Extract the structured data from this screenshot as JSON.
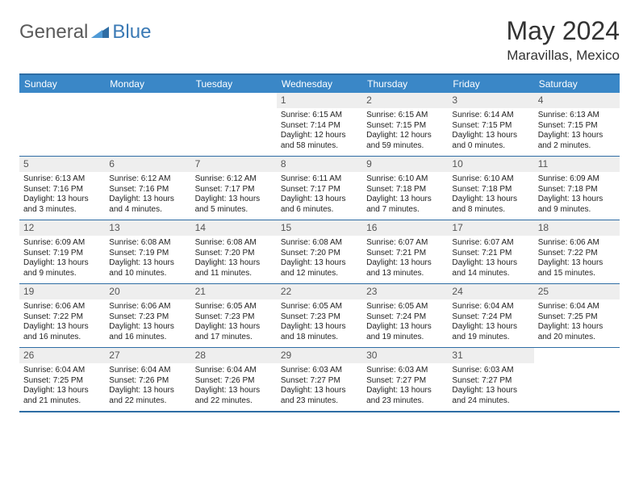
{
  "brand": {
    "part1": "General",
    "part2": "Blue"
  },
  "title": "May 2024",
  "location": "Maravillas, Mexico",
  "colors": {
    "header_bg": "#3a87c7",
    "border": "#2e6da4",
    "daynum_bg": "#eeeeee",
    "text": "#333333"
  },
  "day_names": [
    "Sunday",
    "Monday",
    "Tuesday",
    "Wednesday",
    "Thursday",
    "Friday",
    "Saturday"
  ],
  "weeks": [
    [
      {
        "n": "",
        "sr": "",
        "ss": "",
        "dl": ""
      },
      {
        "n": "",
        "sr": "",
        "ss": "",
        "dl": ""
      },
      {
        "n": "",
        "sr": "",
        "ss": "",
        "dl": ""
      },
      {
        "n": "1",
        "sr": "Sunrise: 6:15 AM",
        "ss": "Sunset: 7:14 PM",
        "dl": "Daylight: 12 hours and 58 minutes."
      },
      {
        "n": "2",
        "sr": "Sunrise: 6:15 AM",
        "ss": "Sunset: 7:15 PM",
        "dl": "Daylight: 12 hours and 59 minutes."
      },
      {
        "n": "3",
        "sr": "Sunrise: 6:14 AM",
        "ss": "Sunset: 7:15 PM",
        "dl": "Daylight: 13 hours and 0 minutes."
      },
      {
        "n": "4",
        "sr": "Sunrise: 6:13 AM",
        "ss": "Sunset: 7:15 PM",
        "dl": "Daylight: 13 hours and 2 minutes."
      }
    ],
    [
      {
        "n": "5",
        "sr": "Sunrise: 6:13 AM",
        "ss": "Sunset: 7:16 PM",
        "dl": "Daylight: 13 hours and 3 minutes."
      },
      {
        "n": "6",
        "sr": "Sunrise: 6:12 AM",
        "ss": "Sunset: 7:16 PM",
        "dl": "Daylight: 13 hours and 4 minutes."
      },
      {
        "n": "7",
        "sr": "Sunrise: 6:12 AM",
        "ss": "Sunset: 7:17 PM",
        "dl": "Daylight: 13 hours and 5 minutes."
      },
      {
        "n": "8",
        "sr": "Sunrise: 6:11 AM",
        "ss": "Sunset: 7:17 PM",
        "dl": "Daylight: 13 hours and 6 minutes."
      },
      {
        "n": "9",
        "sr": "Sunrise: 6:10 AM",
        "ss": "Sunset: 7:18 PM",
        "dl": "Daylight: 13 hours and 7 minutes."
      },
      {
        "n": "10",
        "sr": "Sunrise: 6:10 AM",
        "ss": "Sunset: 7:18 PM",
        "dl": "Daylight: 13 hours and 8 minutes."
      },
      {
        "n": "11",
        "sr": "Sunrise: 6:09 AM",
        "ss": "Sunset: 7:18 PM",
        "dl": "Daylight: 13 hours and 9 minutes."
      }
    ],
    [
      {
        "n": "12",
        "sr": "Sunrise: 6:09 AM",
        "ss": "Sunset: 7:19 PM",
        "dl": "Daylight: 13 hours and 9 minutes."
      },
      {
        "n": "13",
        "sr": "Sunrise: 6:08 AM",
        "ss": "Sunset: 7:19 PM",
        "dl": "Daylight: 13 hours and 10 minutes."
      },
      {
        "n": "14",
        "sr": "Sunrise: 6:08 AM",
        "ss": "Sunset: 7:20 PM",
        "dl": "Daylight: 13 hours and 11 minutes."
      },
      {
        "n": "15",
        "sr": "Sunrise: 6:08 AM",
        "ss": "Sunset: 7:20 PM",
        "dl": "Daylight: 13 hours and 12 minutes."
      },
      {
        "n": "16",
        "sr": "Sunrise: 6:07 AM",
        "ss": "Sunset: 7:21 PM",
        "dl": "Daylight: 13 hours and 13 minutes."
      },
      {
        "n": "17",
        "sr": "Sunrise: 6:07 AM",
        "ss": "Sunset: 7:21 PM",
        "dl": "Daylight: 13 hours and 14 minutes."
      },
      {
        "n": "18",
        "sr": "Sunrise: 6:06 AM",
        "ss": "Sunset: 7:22 PM",
        "dl": "Daylight: 13 hours and 15 minutes."
      }
    ],
    [
      {
        "n": "19",
        "sr": "Sunrise: 6:06 AM",
        "ss": "Sunset: 7:22 PM",
        "dl": "Daylight: 13 hours and 16 minutes."
      },
      {
        "n": "20",
        "sr": "Sunrise: 6:06 AM",
        "ss": "Sunset: 7:23 PM",
        "dl": "Daylight: 13 hours and 16 minutes."
      },
      {
        "n": "21",
        "sr": "Sunrise: 6:05 AM",
        "ss": "Sunset: 7:23 PM",
        "dl": "Daylight: 13 hours and 17 minutes."
      },
      {
        "n": "22",
        "sr": "Sunrise: 6:05 AM",
        "ss": "Sunset: 7:23 PM",
        "dl": "Daylight: 13 hours and 18 minutes."
      },
      {
        "n": "23",
        "sr": "Sunrise: 6:05 AM",
        "ss": "Sunset: 7:24 PM",
        "dl": "Daylight: 13 hours and 19 minutes."
      },
      {
        "n": "24",
        "sr": "Sunrise: 6:04 AM",
        "ss": "Sunset: 7:24 PM",
        "dl": "Daylight: 13 hours and 19 minutes."
      },
      {
        "n": "25",
        "sr": "Sunrise: 6:04 AM",
        "ss": "Sunset: 7:25 PM",
        "dl": "Daylight: 13 hours and 20 minutes."
      }
    ],
    [
      {
        "n": "26",
        "sr": "Sunrise: 6:04 AM",
        "ss": "Sunset: 7:25 PM",
        "dl": "Daylight: 13 hours and 21 minutes."
      },
      {
        "n": "27",
        "sr": "Sunrise: 6:04 AM",
        "ss": "Sunset: 7:26 PM",
        "dl": "Daylight: 13 hours and 22 minutes."
      },
      {
        "n": "28",
        "sr": "Sunrise: 6:04 AM",
        "ss": "Sunset: 7:26 PM",
        "dl": "Daylight: 13 hours and 22 minutes."
      },
      {
        "n": "29",
        "sr": "Sunrise: 6:03 AM",
        "ss": "Sunset: 7:27 PM",
        "dl": "Daylight: 13 hours and 23 minutes."
      },
      {
        "n": "30",
        "sr": "Sunrise: 6:03 AM",
        "ss": "Sunset: 7:27 PM",
        "dl": "Daylight: 13 hours and 23 minutes."
      },
      {
        "n": "31",
        "sr": "Sunrise: 6:03 AM",
        "ss": "Sunset: 7:27 PM",
        "dl": "Daylight: 13 hours and 24 minutes."
      },
      {
        "n": "",
        "sr": "",
        "ss": "",
        "dl": ""
      }
    ]
  ]
}
